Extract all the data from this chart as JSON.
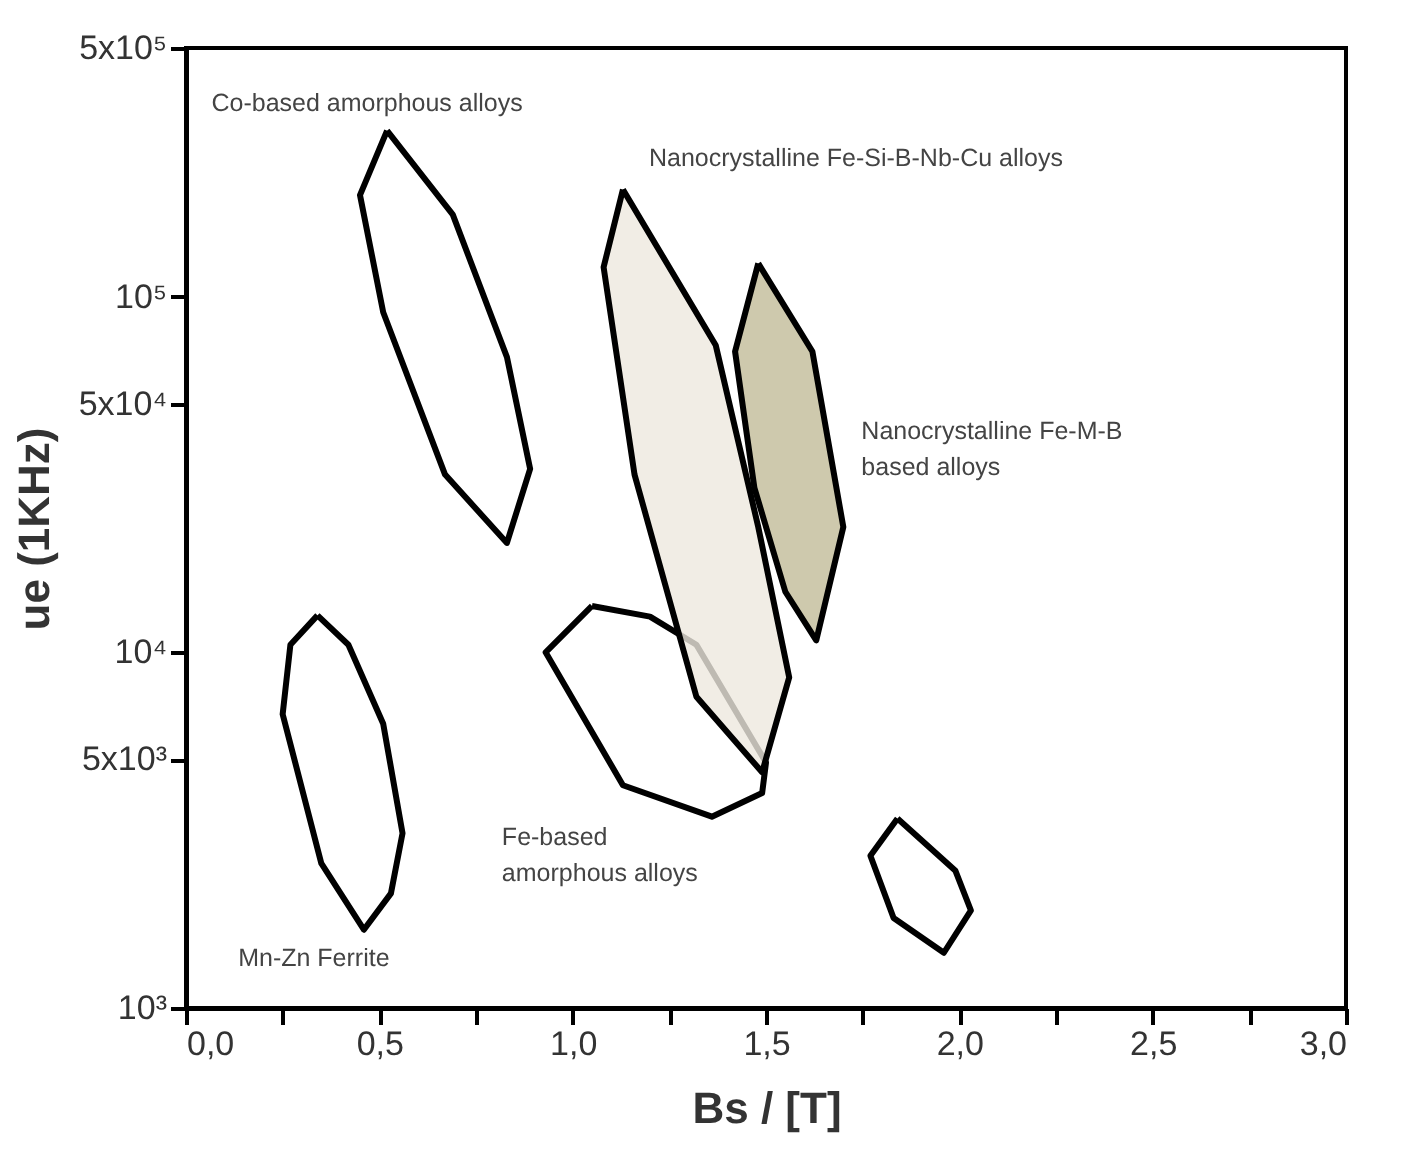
{
  "chart_data": {
    "type": "area",
    "xlabel": "Bs / [T]",
    "ylabel": "ue (1KHz)",
    "log": "y",
    "grid": false,
    "marker": "none",
    "line_style": "solid",
    "xlim": [
      0,
      3
    ],
    "xticks": [
      {
        "value": 0,
        "label": "0,0"
      },
      {
        "value": 0.25,
        "label": null
      },
      {
        "value": 0.5,
        "label": "0,5"
      },
      {
        "value": 0.75,
        "label": null
      },
      {
        "value": 1,
        "label": "1,0"
      },
      {
        "value": 1.25,
        "label": null
      },
      {
        "value": 1.5,
        "label": "1,5"
      },
      {
        "value": 1.75,
        "label": null
      },
      {
        "value": 2,
        "label": "2,0"
      },
      {
        "value": 2.25,
        "label": null
      },
      {
        "value": 2.5,
        "label": "2,5"
      },
      {
        "value": 2.75,
        "label": null
      },
      {
        "value": 3,
        "label": "3,0"
      }
    ],
    "ylim": [
      1000,
      500000
    ],
    "yticks": [
      {
        "value": 1000,
        "label": "10³"
      },
      {
        "value": 5000,
        "label": "5x10³"
      },
      {
        "value": 10000,
        "label": "10⁴"
      },
      {
        "value": 50000,
        "label": "5x10⁴"
      },
      {
        "value": 100000,
        "label": "10⁵"
      },
      {
        "value": 500000,
        "label": "5x10⁵"
      }
    ],
    "series": [
      {
        "name": "Mn-Zn Ferrite",
        "color": "#ffffff",
        "x": [
          0.34,
          0.42,
          0.51,
          0.56,
          0.53,
          0.46,
          0.35,
          0.25,
          0.27,
          0.34
        ],
        "values": [
          12700,
          10500,
          6300,
          3100,
          2100,
          1660,
          2550,
          6700,
          10500,
          12700
        ]
      },
      {
        "name": "Co-based amorphous alloys",
        "color": "#ffffff",
        "x": [
          0.52,
          0.69,
          0.83,
          0.89,
          0.83,
          0.67,
          0.51,
          0.45,
          0.52
        ],
        "values": [
          293000,
          170000,
          67600,
          32800,
          20300,
          31600,
          90400,
          193000,
          293000
        ]
      },
      {
        "name": "Fe-based\namorphous alloys",
        "color": "#ffffff",
        "x": [
          1.05,
          1.2,
          1.32,
          1.5,
          1.49,
          1.36,
          1.13,
          0.93,
          1.05
        ],
        "values": [
          13500,
          12600,
          10500,
          4900,
          4020,
          3450,
          4230,
          10000,
          13500
        ]
      },
      {
        "name": "Nanocrystalline Fe-Si-B-Nb-Cu alloys",
        "color": "#ede9df",
        "x": [
          1.13,
          1.37,
          1.48,
          1.56,
          1.49,
          1.32,
          1.16,
          1.08,
          1.13
        ],
        "values": [
          200000,
          73000,
          22500,
          8500,
          4600,
          7500,
          31600,
          121000,
          200000
        ]
      },
      {
        "name": "Nanocrystalline Fe-M-B\nbased alloys",
        "color": "#c2bb98",
        "x": [
          1.48,
          1.62,
          1.7,
          1.63,
          1.55,
          1.47,
          1.42,
          1.48
        ],
        "values": [
          124000,
          70100,
          22500,
          10800,
          14800,
          29000,
          70100,
          124000
        ]
      },
      {
        "color": "#ffffff",
        "x": [
          1.84,
          1.99,
          2.03,
          1.96,
          1.83,
          1.77,
          1.84
        ],
        "values": [
          3410,
          2430,
          1880,
          1430,
          1790,
          2680,
          3410
        ]
      }
    ]
  }
}
